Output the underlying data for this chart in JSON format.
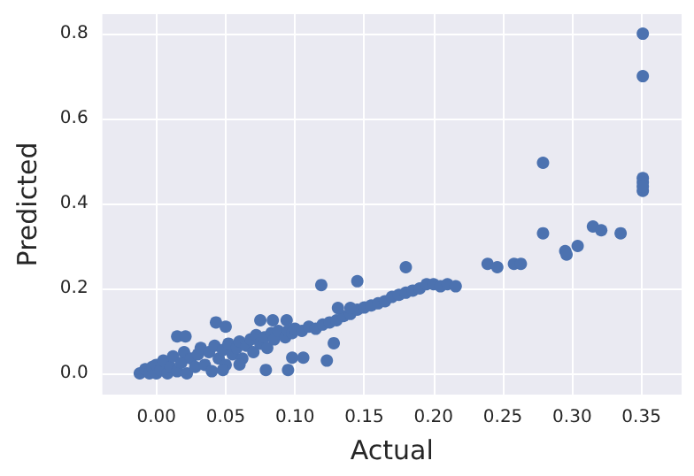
{
  "chart_data": {
    "type": "scatter",
    "xlabel": "Actual",
    "ylabel": "Predicted",
    "color": "#4c72b0",
    "marker": "circle",
    "grid": true,
    "x": [
      -0.012,
      -0.008,
      -0.005,
      -0.003,
      0,
      0,
      0.003,
      0.005,
      0.008,
      0.01,
      0.012,
      0.015,
      0.018,
      0.02,
      0.022,
      0.025,
      0.028,
      0.03,
      0.032,
      0.035,
      0.038,
      0.04,
      0.042,
      0.045,
      0.048,
      0.05,
      0.052,
      0.055,
      0.058,
      0.06,
      0.062,
      0.065,
      0.068,
      0.07,
      0.072,
      0.075,
      0.078,
      0.08,
      0.083,
      0.085,
      0.088,
      0.093,
      0.095,
      0.098,
      0.1,
      0.105,
      0.11,
      0.115,
      0.12,
      0.125,
      0.13,
      0.135,
      0.14,
      0.145,
      0.15,
      0.155,
      0.16,
      0.165,
      0.17,
      0.175,
      0.18,
      0.185,
      0.19,
      0.195,
      0.2,
      0.205,
      0.21,
      0.216,
      0.123,
      0.128,
      0.095,
      0.079,
      0.098,
      0.106,
      0.048,
      0.06,
      0.015,
      0.021,
      0.043,
      0.05,
      0.075,
      0.084,
      0.094,
      0.131,
      0.145,
      0.119,
      0.14,
      0.18,
      0.239,
      0.246,
      0.258,
      0.263,
      0.295,
      0.296,
      0.304,
      0.279,
      0.315,
      0.321,
      0.335,
      0.351,
      0.351,
      0.351,
      0.351,
      0.279,
      0.351,
      0.351
    ],
    "values": [
      0,
      0.01,
      0,
      0.015,
      0,
      0.02,
      0.008,
      0.03,
      0,
      0.015,
      0.04,
      0.005,
      0.025,
      0.05,
      0,
      0.035,
      0.015,
      0.045,
      0.06,
      0.02,
      0.05,
      0.005,
      0.065,
      0.035,
      0.055,
      0.02,
      0.07,
      0.045,
      0.06,
      0.075,
      0.035,
      0.065,
      0.08,
      0.05,
      0.09,
      0.07,
      0.085,
      0.06,
      0.095,
      0.08,
      0.1,
      0.085,
      0.1,
      0.095,
      0.105,
      0.1,
      0.11,
      0.105,
      0.115,
      0.12,
      0.125,
      0.135,
      0.14,
      0.15,
      0.155,
      0.16,
      0.165,
      0.17,
      0.18,
      0.185,
      0.19,
      0.195,
      0.2,
      0.21,
      0.21,
      0.205,
      0.21,
      0.205,
      0.03,
      0.071,
      0.008,
      0.008,
      0.037,
      0.037,
      0.008,
      0.021,
      0.087,
      0.087,
      0.12,
      0.11,
      0.125,
      0.125,
      0.125,
      0.154,
      0.217,
      0.208,
      0.154,
      0.25,
      0.258,
      0.25,
      0.258,
      0.258,
      0.288,
      0.28,
      0.3,
      0.33,
      0.346,
      0.337,
      0.33,
      0.46,
      0.45,
      0.43,
      0.44,
      0.496,
      0.7,
      0.8
    ],
    "xlim": [
      -0.039,
      0.379
    ],
    "ylim": [
      -0.05,
      0.846
    ],
    "xticks": [
      {
        "value": 0,
        "label": "0.00"
      },
      {
        "value": 0.05,
        "label": "0.05"
      },
      {
        "value": 0.1,
        "label": "0.10"
      },
      {
        "value": 0.15,
        "label": "0.15"
      },
      {
        "value": 0.2,
        "label": "0.20"
      },
      {
        "value": 0.25,
        "label": "0.25"
      },
      {
        "value": 0.3,
        "label": "0.30"
      },
      {
        "value": 0.35,
        "label": "0.35"
      }
    ],
    "yticks": [
      {
        "value": 0,
        "label": "0.0"
      },
      {
        "value": 0.2,
        "label": "0.2"
      },
      {
        "value": 0.4,
        "label": "0.4"
      },
      {
        "value": 0.6,
        "label": "0.6"
      },
      {
        "value": 0.8,
        "label": "0.8"
      }
    ]
  }
}
